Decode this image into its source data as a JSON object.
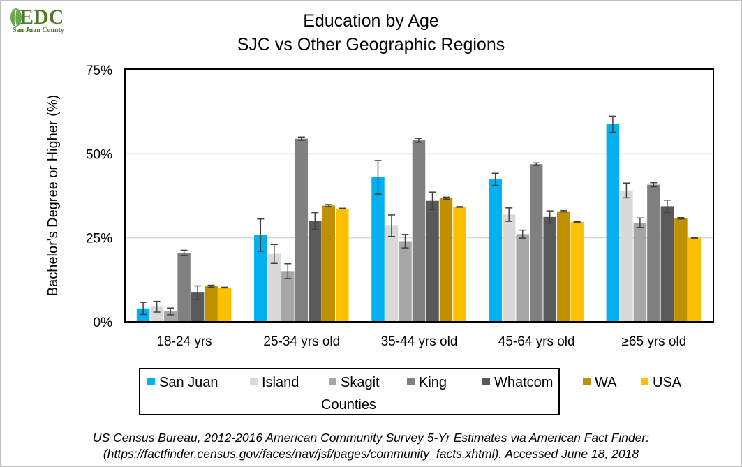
{
  "logo": {
    "text": "EDC",
    "subtext": "San Juan County"
  },
  "chart_data": {
    "type": "bar",
    "title": "Education by Age",
    "subtitle": "SJC vs Other Geographic Regions",
    "xlabel": "",
    "ylabel": "Bachelor's Degree or Higher (%)",
    "ylim": [
      0,
      75
    ],
    "yticks": [
      "0%",
      "25%",
      "50%",
      "75%"
    ],
    "yticks_values": [
      0,
      25,
      50,
      75
    ],
    "grid": true,
    "legend_placement": "bottom",
    "legend_title": "Counties",
    "categories": [
      "18-24 yrs",
      "25-34 yrs old",
      "35-44 yrs old",
      "45-64 yrs old",
      "≥65 yrs old"
    ],
    "series": [
      {
        "name": "San Juan",
        "color": "#00b0f0",
        "values": [
          4.0,
          25.8,
          43.0,
          42.4,
          58.8
        ],
        "errors": [
          1.8,
          4.8,
          5.0,
          1.8,
          2.4
        ]
      },
      {
        "name": "Island",
        "color": "#d9d9d9",
        "values": [
          4.5,
          20.2,
          28.6,
          31.9,
          39.1
        ],
        "errors": [
          1.6,
          2.8,
          3.2,
          2.0,
          2.2
        ]
      },
      {
        "name": "Skagit",
        "color": "#a6a6a6",
        "values": [
          3.1,
          15.1,
          24.0,
          26.1,
          29.5
        ],
        "errors": [
          1.0,
          2.2,
          2.0,
          1.2,
          1.4
        ]
      },
      {
        "name": "King",
        "color": "#808080",
        "values": [
          20.5,
          54.5,
          54.0,
          46.9,
          40.8
        ],
        "errors": [
          0.8,
          0.5,
          0.6,
          0.4,
          0.6
        ]
      },
      {
        "name": "Whatcom",
        "color": "#595959",
        "values": [
          8.7,
          30.0,
          36.0,
          31.2,
          34.4
        ],
        "errors": [
          2.0,
          2.5,
          2.6,
          1.8,
          1.8
        ]
      },
      {
        "name": "WA",
        "color": "#bf9000",
        "values": [
          10.6,
          34.6,
          36.8,
          32.9,
          30.8
        ],
        "errors": [
          0.3,
          0.3,
          0.3,
          0.2,
          0.2
        ]
      },
      {
        "name": "USA",
        "color": "#ffc000",
        "values": [
          10.2,
          33.7,
          34.2,
          29.7,
          25.0
        ],
        "errors": [
          0.1,
          0.1,
          0.1,
          0.1,
          0.1
        ]
      }
    ]
  },
  "source": {
    "line1": "US Census Bureau, 2012-2016 American Community Survey 5-Yr Estimates via American Fact Finder:",
    "line2": "(https://factfinder.census.gov/faces/nav/jsf/pages/community_facts.xhtml). Accessed June 18, 2018"
  }
}
